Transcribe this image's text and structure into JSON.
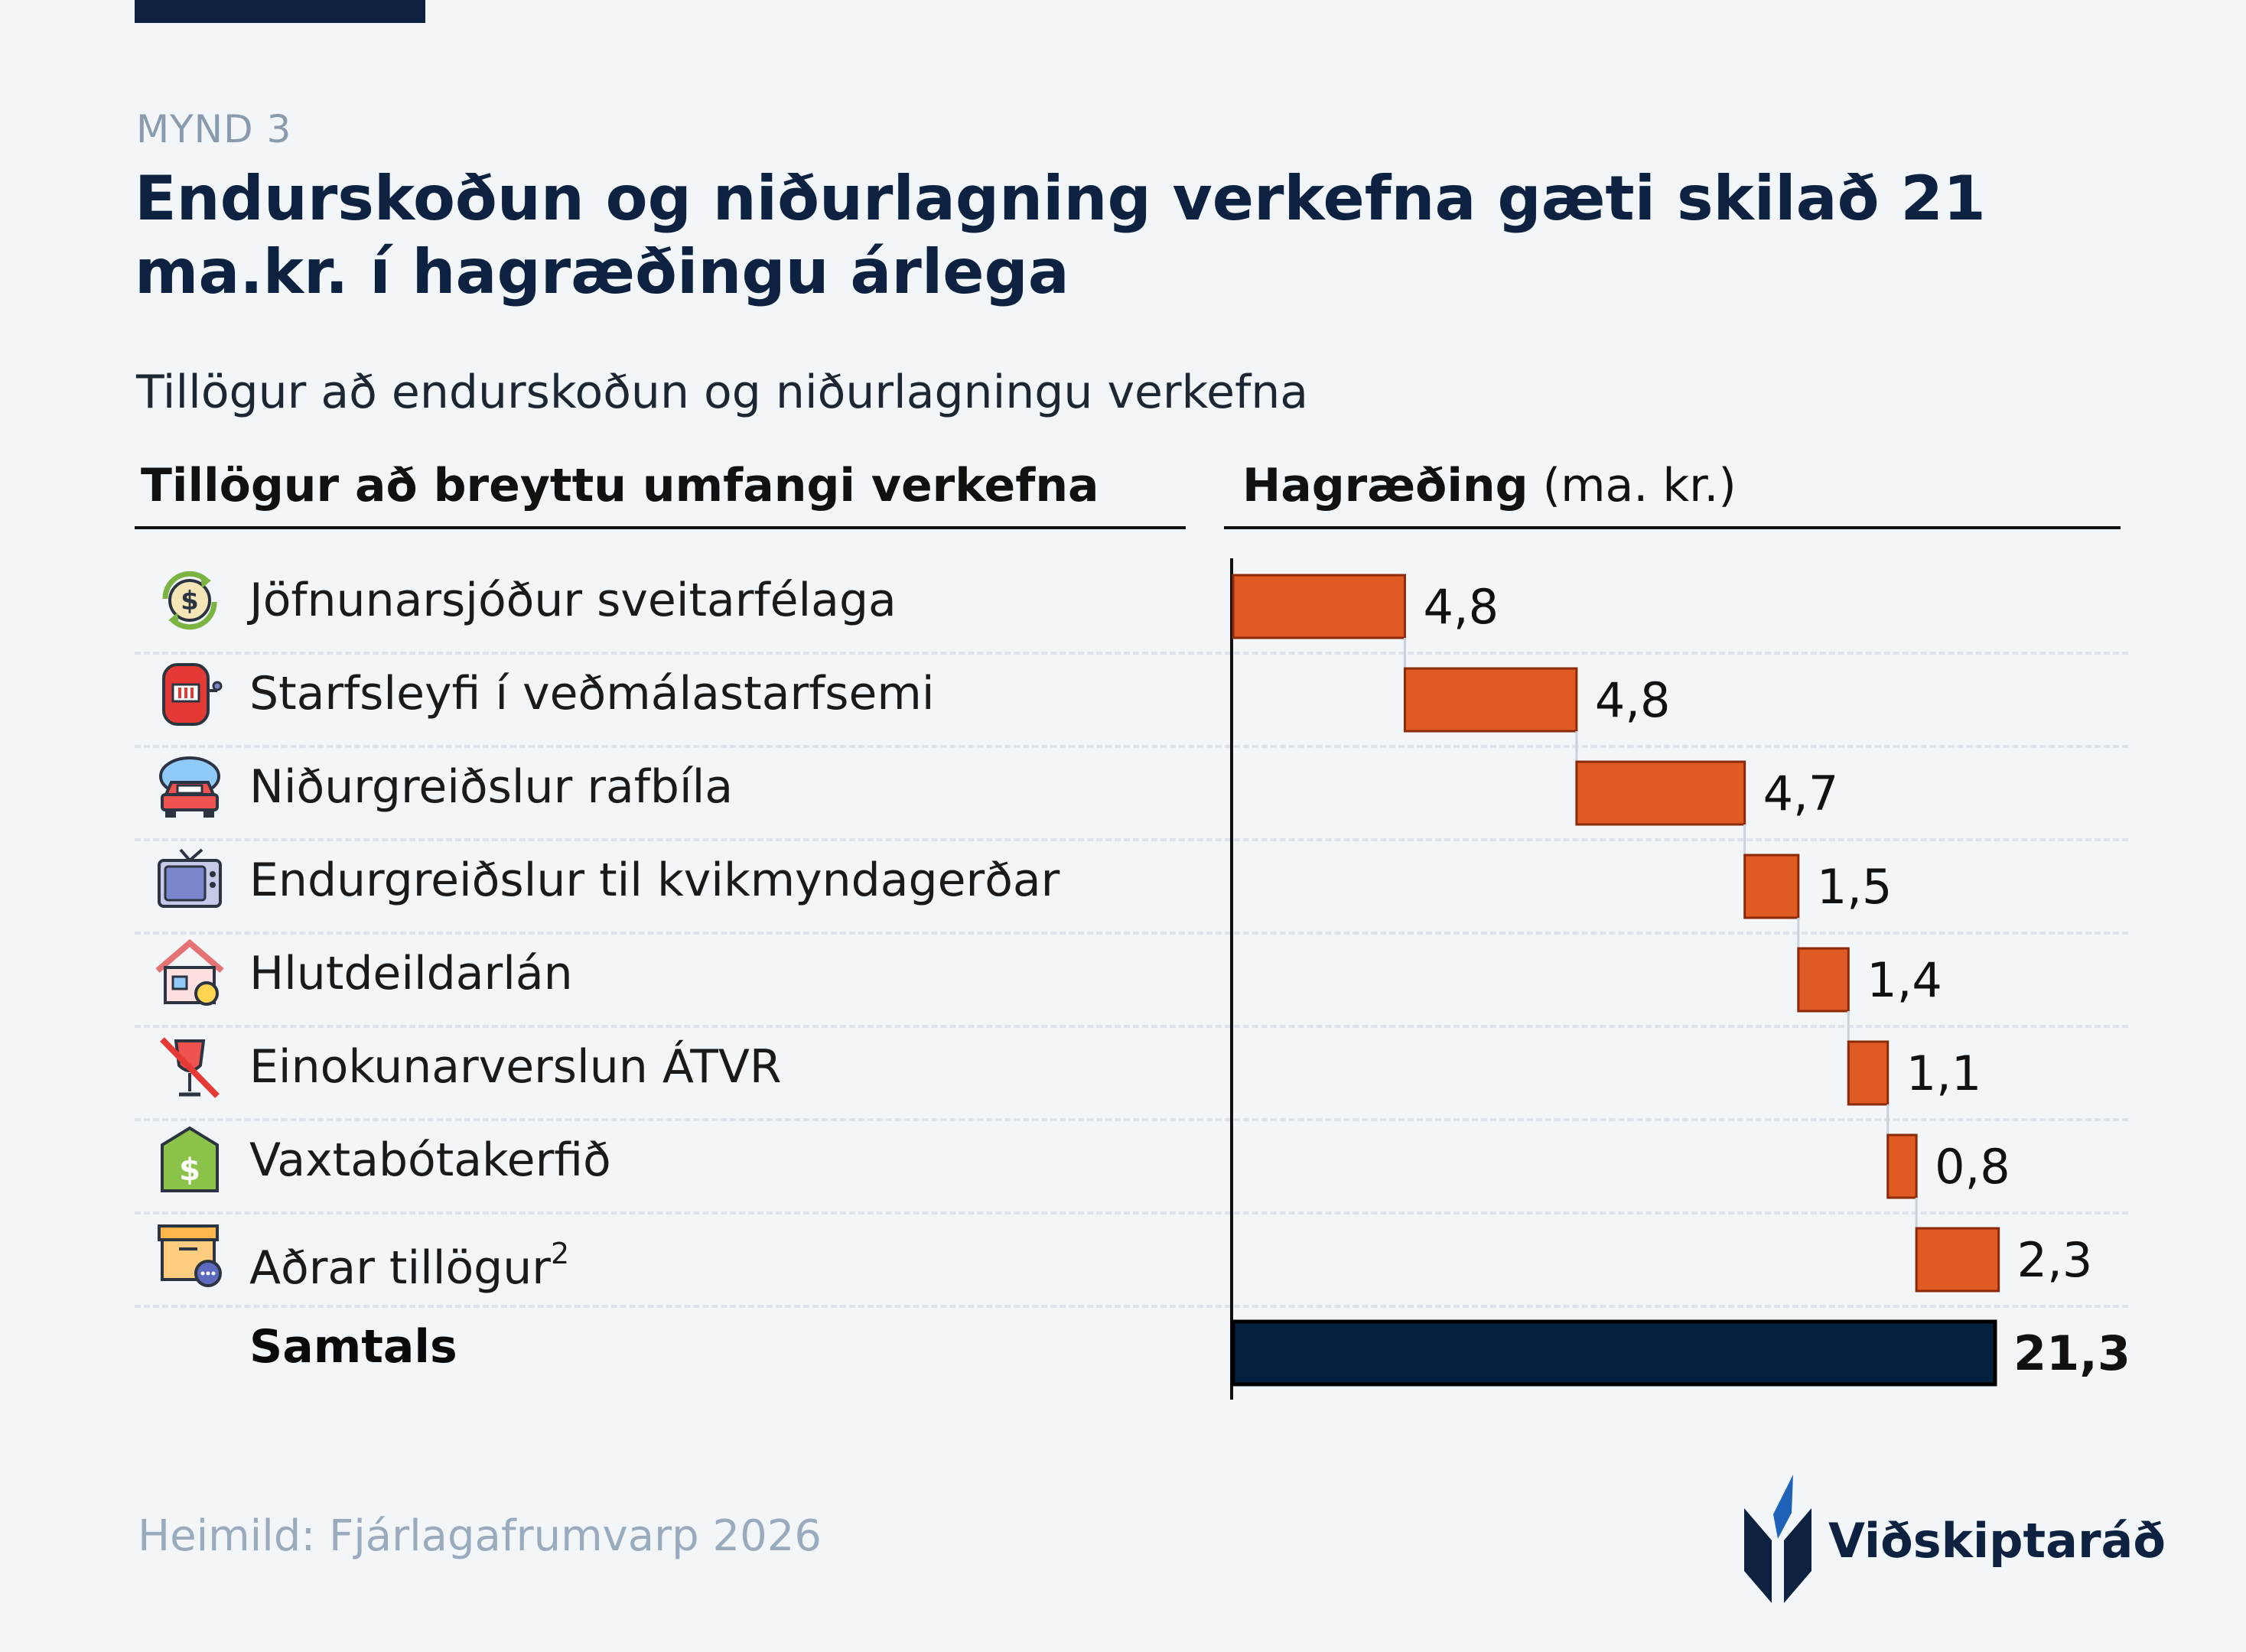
{
  "figure_label": "MYND 3",
  "title": "Endurskoðun og niðurlagning verkefna gæti skilað 21 ma.kr. í hagræðingu árlega",
  "subtitle": "Tillögur að endurskoðun og niðurlagningu verkefna",
  "left_header": "Tillögur að breyttu umfangi verkefna",
  "right_header_bold": "Hagræðing",
  "right_header_unit": "(ma. kr.)",
  "source": "Heimild: Fjárlagafrumvarp 2026",
  "logo_text": "Viðskiptaráð",
  "colors": {
    "increase": "#e05a24",
    "total": "#03213f",
    "title": "#0d2240"
  },
  "rows": [
    {
      "label": "Jöfnunarsjóður sveitarfélaga",
      "icon": "money-cycle-icon"
    },
    {
      "label": "Starfsleyfi í veðmálastarfsemi",
      "icon": "slot-machine-icon"
    },
    {
      "label": "Niðurgreiðslur rafbíla",
      "icon": "electric-car-icon"
    },
    {
      "label": "Endurgreiðslur til kvikmyndagerðar",
      "icon": "television-icon"
    },
    {
      "label": "Hlutdeildarlán",
      "icon": "house-loan-icon"
    },
    {
      "label": "Einokunarverslun ÁTVR",
      "icon": "no-wine-icon"
    },
    {
      "label": "Vaxtabótakerfið",
      "icon": "dollar-tag-icon"
    },
    {
      "label": "Aðrar tillögur",
      "label_sup": "2",
      "icon": "box-chat-icon"
    },
    {
      "label": "Samtals",
      "total": true
    }
  ],
  "chart_data": {
    "type": "bar",
    "subtype": "waterfall",
    "categories": [
      "Jöfnunarsjóður sveitarfélaga",
      "Starfsleyfi í veðmálastarfsemi",
      "Niðurgreiðslur rafbíla",
      "Endurgreiðslur til kvikmyndagerðar",
      "Hlutdeildarlán",
      "Einokunarverslun ÁTVR",
      "Vaxtabótakerfið",
      "Aðrar tillögur",
      "Samtals"
    ],
    "values": [
      4.8,
      4.8,
      4.7,
      1.5,
      1.4,
      1.1,
      0.8,
      2.3,
      21.3
    ],
    "value_labels": [
      "4,8",
      "4,8",
      "4,7",
      "1,5",
      "1,4",
      "1,1",
      "0,8",
      "2,3",
      "21,3"
    ],
    "total_index": 8,
    "xlabel": "Hagræðing (ma. kr.)",
    "xlim": [
      0,
      21.3
    ],
    "grid": false
  }
}
